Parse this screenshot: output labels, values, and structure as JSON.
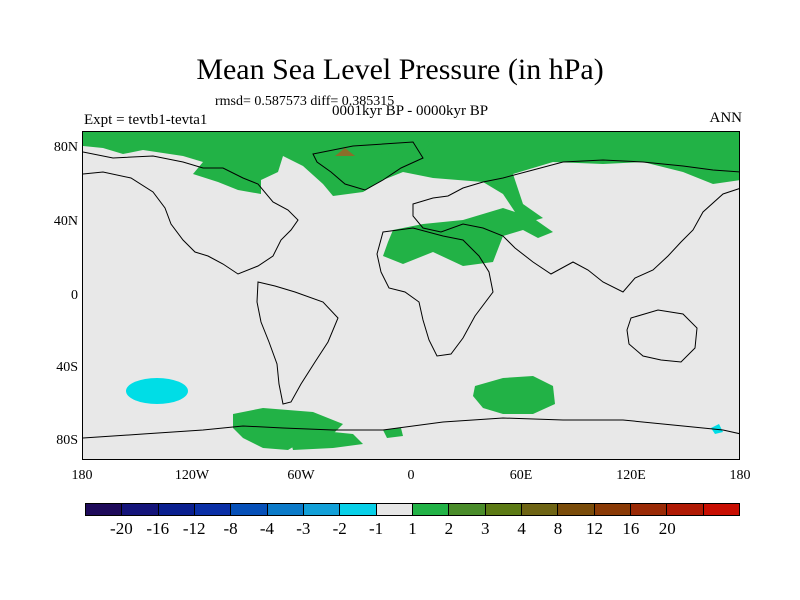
{
  "title": "Mean Sea Level Pressure (in hPa)",
  "stats": "rmsd= 0.587573 diff= 0.385315",
  "period": "0001kyr BP - 0000kyr BP",
  "expt": "Expt = tevtb1-tevta1",
  "season": "ANN",
  "y_axis": {
    "labels": [
      "80N",
      "40N",
      "0",
      "40S",
      "80S"
    ],
    "values": [
      80,
      40,
      0,
      -40,
      -80
    ]
  },
  "x_axis": {
    "labels": [
      "180",
      "120W",
      "60W",
      "0",
      "60E",
      "120E",
      "180"
    ],
    "values": [
      -180,
      -120,
      -60,
      0,
      60,
      120,
      180
    ]
  },
  "colors": {
    "neutral": "#e6e6e6",
    "land_line": "#000000",
    "pos_1_2": "#22b246",
    "pos_3_4": "#8a6e2a",
    "neg_2_1": "#00dde6"
  },
  "colorbar": {
    "colors": [
      "#1e0a5a",
      "#14147a",
      "#0a1f8f",
      "#0a2fa6",
      "#0650b8",
      "#0b7ac8",
      "#12a0d8",
      "#08d0e8",
      "#e6e6e6",
      "#22b246",
      "#4a8c2a",
      "#5c7a14",
      "#6e6414",
      "#7a4c0a",
      "#8a3a06",
      "#9a2a06",
      "#b01a04",
      "#c80e02"
    ],
    "labels": [
      "-20",
      "-16",
      "-12",
      "-8",
      "-4",
      "-3",
      "-2",
      "-1",
      "1",
      "2",
      "3",
      "4",
      "8",
      "12",
      "16",
      "20"
    ]
  }
}
